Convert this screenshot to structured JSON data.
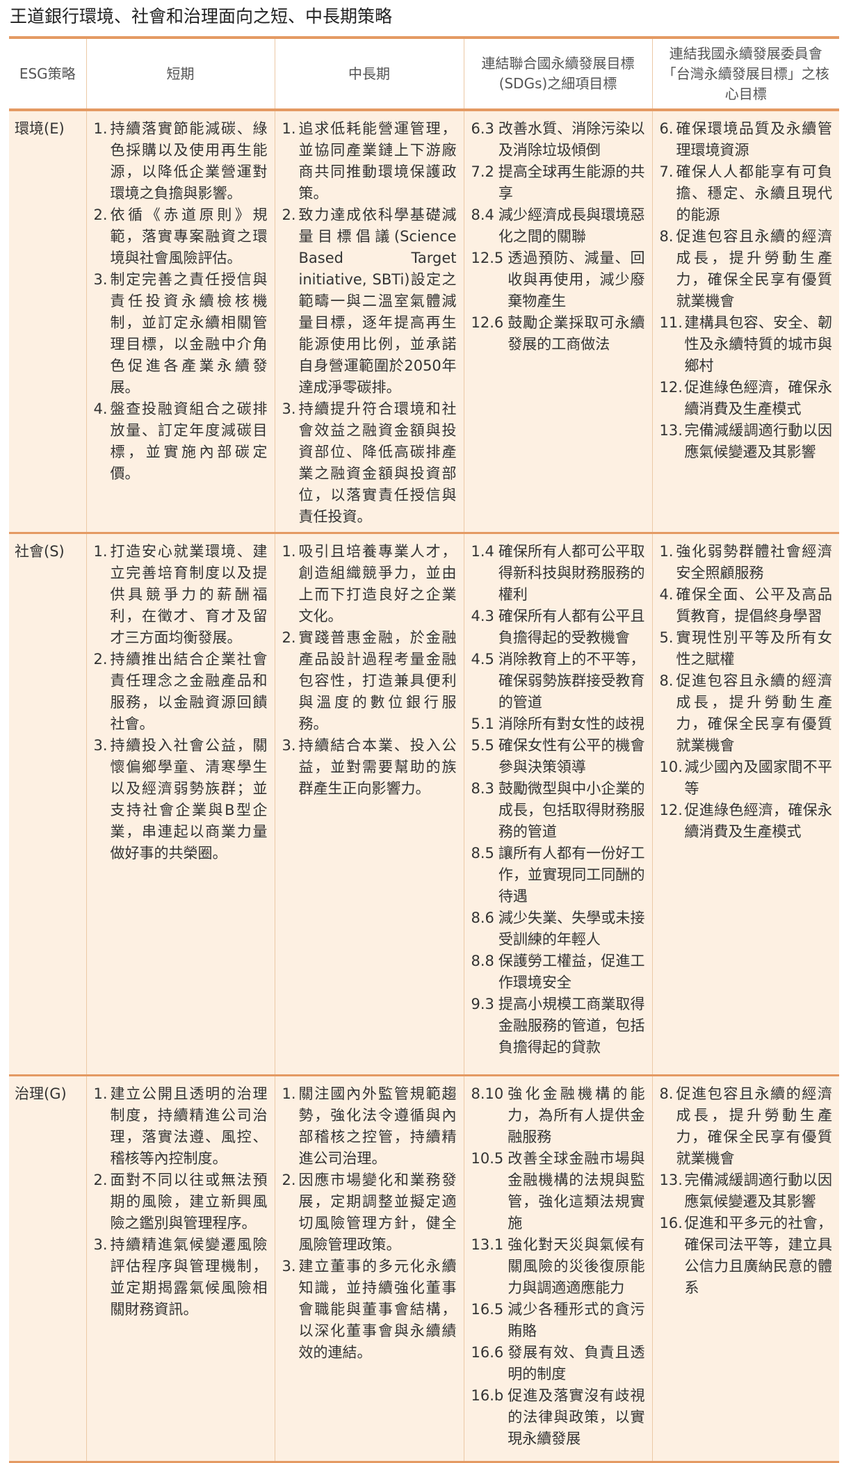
{
  "title": "王道銀行環境、社會和治理面向之短、中長期策略",
  "headers": [
    "ESG策略",
    "短期",
    "中長期",
    "連結聯合國永續發展目標(SDGs)之細項目標",
    "連結我國永續發展委員會「台灣永續發展目標」之核心目標"
  ],
  "rows": [
    {
      "category": "環境(E)",
      "short_term": [
        {
          "num": "1.",
          "text": "持續落實節能減碳、綠色採購以及使用再生能源，以降低企業營運對環境之負擔與影響。"
        },
        {
          "num": "2.",
          "text": "依循《赤道原則》規範，落實專案融資之環境與社會風險評估。"
        },
        {
          "num": "3.",
          "text": "制定完善之責任授信與責任投資永續檢核機制，並訂定永續相關管理目標，以金融中介角色促進各產業永續發展。"
        },
        {
          "num": "4.",
          "text": "盤查投融資組合之碳排放量、訂定年度減碳目標，並實施內部碳定價。"
        }
      ],
      "mid_long_term": [
        {
          "num": "1.",
          "text": "追求低耗能營運管理，並協同產業鏈上下游廠商共同推動環境保護政策。"
        },
        {
          "num": "2.",
          "text": "致力達成依科學基礎減量目標倡議(Science Based Target initiative, SBTi)設定之範疇一與二溫室氣體減量目標，逐年提高再生能源使用比例，並承諾自身營運範圍於2050年達成淨零碳排。"
        },
        {
          "num": "3.",
          "text": "持續提升符合環境和社會效益之融資金額與投資部位、降低高碳排產業之融資金額與投資部位，以落實責任授信與責任投資。"
        }
      ],
      "sdgs": [
        {
          "num": "6.3",
          "text": "改善水質、消除污染以及消除垃圾傾倒"
        },
        {
          "num": "7.2",
          "text": "提高全球再生能源的共享"
        },
        {
          "num": "8.4",
          "text": "減少經濟成長與環境惡化之間的關聯"
        },
        {
          "num": "12.5",
          "text": "透過預防、減量、回收與再使用，減少廢棄物產生"
        },
        {
          "num": "12.6",
          "text": "鼓勵企業採取可永續發展的工商做法"
        }
      ],
      "taiwan_goals": [
        {
          "num": "6.",
          "text": "確保環境品質及永續管理環境資源"
        },
        {
          "num": "7.",
          "text": "確保人人都能享有可負擔、穩定、永續且現代的能源"
        },
        {
          "num": "8.",
          "text": "促進包容且永續的經濟成長，提升勞動生產力，確保全民享有優質就業機會"
        },
        {
          "num": "11.",
          "text": "建構具包容、安全、韌性及永續特質的城市與鄉村"
        },
        {
          "num": "12.",
          "text": "促進綠色經濟，確保永續消費及生產模式"
        },
        {
          "num": "13.",
          "text": "完備減緩調適行動以因應氣候變遷及其影響"
        }
      ]
    },
    {
      "category": "社會(S)",
      "short_term": [
        {
          "num": "1.",
          "text": "打造安心就業環境、建立完善培育制度以及提供具競爭力的薪酬福利，在徵才、育才及留才三方面均衡發展。"
        },
        {
          "num": "2.",
          "text": "持續推出結合企業社會責任理念之金融產品和服務，以金融資源回饋社會。"
        },
        {
          "num": "3.",
          "text": "持續投入社會公益，關懷偏鄉學童、清寒學生以及經濟弱勢族群；並支持社會企業與B型企業，串連起以商業力量做好事的共榮圈。"
        }
      ],
      "mid_long_term": [
        {
          "num": "1.",
          "text": "吸引且培養專業人才，創造組織競爭力，並由上而下打造良好之企業文化。"
        },
        {
          "num": "2.",
          "text": "實踐普惠金融，於金融產品設計過程考量金融包容性，打造兼具便利與溫度的數位銀行服務。"
        },
        {
          "num": "3.",
          "text": "持續結合本業、投入公益，並對需要幫助的族群產生正向影響力。"
        }
      ],
      "sdgs": [
        {
          "num": "1.4",
          "text": "確保所有人都可公平取得新科技與財務服務的權利"
        },
        {
          "num": "4.3",
          "text": "確保所有人都有公平且負擔得起的受教機會"
        },
        {
          "num": "4.5",
          "text": "消除教育上的不平等，確保弱勢族群接受教育的管道"
        },
        {
          "num": "5.1",
          "text": "消除所有對女性的歧視"
        },
        {
          "num": "5.5",
          "text": "確保女性有公平的機會參與決策領導"
        },
        {
          "num": "8.3",
          "text": "鼓勵微型與中小企業的成長，包括取得財務服務的管道"
        },
        {
          "num": "8.5",
          "text": "讓所有人都有一份好工作，並實現同工同酬的待遇"
        },
        {
          "num": "8.6",
          "text": "減少失業、失學或未接受訓練的年輕人"
        },
        {
          "num": "8.8",
          "text": "保護勞工權益，促進工作環境安全"
        },
        {
          "num": "9.3",
          "text": "提高小規模工商業取得金融服務的管道，包括負擔得起的貸款"
        }
      ],
      "taiwan_goals": [
        {
          "num": "1.",
          "text": "強化弱勢群體社會經濟安全照顧服務"
        },
        {
          "num": "4.",
          "text": "確保全面、公平及高品質教育，提倡終身學習"
        },
        {
          "num": "5.",
          "text": "實現性別平等及所有女性之賦權"
        },
        {
          "num": "8.",
          "text": "促進包容且永續的經濟成長，提升勞動生產力，確保全民享有優質就業機會"
        },
        {
          "num": "10.",
          "text": "減少國內及國家間不平等"
        },
        {
          "num": "12.",
          "text": "促進綠色經濟，確保永續消費及生產模式"
        }
      ]
    },
    {
      "category": "治理(G)",
      "short_term": [
        {
          "num": "1.",
          "text": "建立公開且透明的治理制度，持續精進公司治理，落實法遵、風控、稽核等內控制度。"
        },
        {
          "num": "2.",
          "text": "面對不同以往或無法預期的風險，建立新興風險之鑑別與管理程序。"
        },
        {
          "num": "3.",
          "text": "持續精進氣候變遷風險評估程序與管理機制，並定期揭露氣候風險相關財務資訊。"
        }
      ],
      "mid_long_term": [
        {
          "num": "1.",
          "text": "關注國內外監管規範趨勢，強化法令遵循與內部稽核之控管，持續精進公司治理。"
        },
        {
          "num": "2.",
          "text": "因應市場變化和業務發展，定期調整並擬定適切風險管理方針，健全風險管理政策。"
        },
        {
          "num": "3.",
          "text": "建立董事的多元化永續知識，並持續強化董事會職能與董事會結構，以深化董事會與永續績效的連結。"
        }
      ],
      "sdgs": [
        {
          "num": "8.10",
          "text": "強化金融機構的能力，為所有人提供金融服務"
        },
        {
          "num": "10.5",
          "text": "改善全球金融市場與金融機構的法規與監管，強化這類法規實施"
        },
        {
          "num": "13.1",
          "text": "強化對天災與氣候有關風險的災後復原能力與調適適應能力"
        },
        {
          "num": "16.5",
          "text": "減少各種形式的貪污賄賂"
        },
        {
          "num": "16.6",
          "text": "發展有效、負責且透明的制度"
        },
        {
          "num": "16.b",
          "text": "促進及落實沒有歧視的法律與政策，以實現永續發展"
        }
      ],
      "taiwan_goals": [
        {
          "num": "8.",
          "text": "促進包容且永續的經濟成長，提升勞動生產力，確保全民享有優質就業機會"
        },
        {
          "num": "13.",
          "text": "完備減緩調適行動以因應氣候變遷及其影響"
        },
        {
          "num": "16.",
          "text": "促進和平多元的社會，確保司法平等，建立具公信力且廣納民意的體系"
        }
      ]
    }
  ],
  "colors": {
    "accent_border": "#e49a63",
    "row_background": "#fdf0e2",
    "cell_divider": "#ecc9a6"
  }
}
